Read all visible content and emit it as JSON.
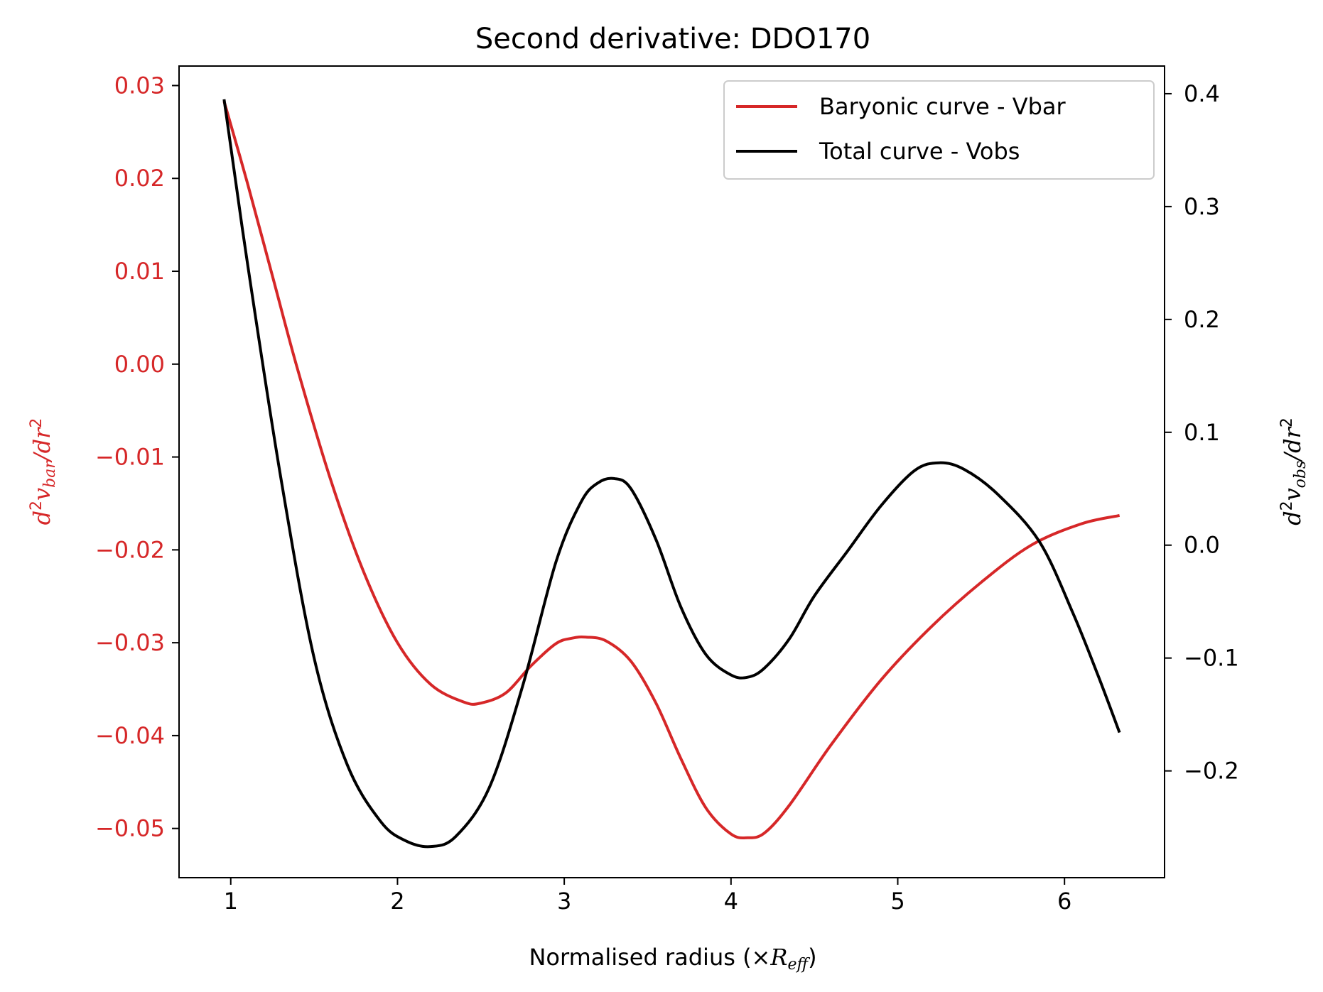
{
  "chart_data": {
    "type": "line",
    "title": "Second derivative: DDO170",
    "xlabel": {
      "main": "Normalised radius (×",
      "var": "R",
      "sub": "eff",
      "close": ")"
    },
    "ylabel_left": {
      "var1": "d",
      "sup1": "2",
      "var2": "v",
      "sub": "bar",
      "slash": "/",
      "var3": "dr",
      "sup2": "2"
    },
    "ylabel_right": {
      "var1": "d",
      "sup1": "2",
      "var2": "v",
      "sub": "obs",
      "slash": "/",
      "var3": "dr",
      "sup2": "2"
    },
    "xlim": [
      0.69,
      6.6
    ],
    "ylim_left": [
      -0.0553,
      0.0321
    ],
    "ylim_right": [
      -0.2946,
      0.4245
    ],
    "x_ticks": [
      1,
      2,
      3,
      4,
      5,
      6
    ],
    "x_tick_labels": [
      "1",
      "2",
      "3",
      "4",
      "5",
      "6"
    ],
    "y_left_ticks": [
      0.03,
      0.02,
      0.01,
      0.0,
      -0.01,
      -0.02,
      -0.03,
      -0.04,
      -0.05
    ],
    "y_left_tick_labels": [
      "0.03",
      "0.02",
      "0.01",
      "0.00",
      "−0.01",
      "−0.02",
      "−0.03",
      "−0.04",
      "−0.05"
    ],
    "y_right_ticks": [
      0.4,
      0.3,
      0.2,
      0.1,
      0.0,
      -0.1,
      -0.2
    ],
    "y_right_tick_labels": [
      "0.4",
      "0.3",
      "0.2",
      "0.1",
      "0.0",
      "−0.1",
      "−0.2"
    ],
    "grid": false,
    "legend_position": "top-right",
    "colors": {
      "bar": "#d62728",
      "obs": "#000000",
      "left_axis_text": "#d62728",
      "right_axis_text": "#000000"
    },
    "series": [
      {
        "name": "Baryonic curve - Vbar",
        "axis": "left",
        "color": "#d62728",
        "points": [
          [
            0.96,
            0.0283
          ],
          [
            1.1,
            0.0195
          ],
          [
            1.25,
            0.0095
          ],
          [
            1.4,
            -0.0005
          ],
          [
            1.6,
            -0.0125
          ],
          [
            1.8,
            -0.0225
          ],
          [
            2.0,
            -0.03
          ],
          [
            2.2,
            -0.0345
          ],
          [
            2.4,
            -0.0364
          ],
          [
            2.5,
            -0.0365
          ],
          [
            2.65,
            -0.0354
          ],
          [
            2.8,
            -0.0325
          ],
          [
            2.95,
            -0.0301
          ],
          [
            3.05,
            -0.0295
          ],
          [
            3.13,
            -0.0294
          ],
          [
            3.25,
            -0.0298
          ],
          [
            3.4,
            -0.032
          ],
          [
            3.55,
            -0.0365
          ],
          [
            3.7,
            -0.0425
          ],
          [
            3.85,
            -0.0478
          ],
          [
            4.0,
            -0.0506
          ],
          [
            4.1,
            -0.051
          ],
          [
            4.2,
            -0.0505
          ],
          [
            4.35,
            -0.0475
          ],
          [
            4.6,
            -0.041
          ],
          [
            4.9,
            -0.034
          ],
          [
            5.2,
            -0.0283
          ],
          [
            5.5,
            -0.0235
          ],
          [
            5.8,
            -0.0195
          ],
          [
            6.1,
            -0.0172
          ],
          [
            6.33,
            -0.0163
          ]
        ]
      },
      {
        "name": "Total curve - Vobs",
        "axis": "right",
        "color": "#000000",
        "points": [
          [
            0.96,
            0.395
          ],
          [
            1.1,
            0.25
          ],
          [
            1.3,
            0.06
          ],
          [
            1.5,
            -0.1
          ],
          [
            1.7,
            -0.195
          ],
          [
            1.9,
            -0.245
          ],
          [
            2.05,
            -0.262
          ],
          [
            2.2,
            -0.267
          ],
          [
            2.35,
            -0.258
          ],
          [
            2.55,
            -0.215
          ],
          [
            2.75,
            -0.125
          ],
          [
            2.95,
            -0.015
          ],
          [
            3.1,
            0.038
          ],
          [
            3.2,
            0.055
          ],
          [
            3.3,
            0.059
          ],
          [
            3.4,
            0.05
          ],
          [
            3.55,
            0.005
          ],
          [
            3.7,
            -0.055
          ],
          [
            3.85,
            -0.097
          ],
          [
            4.0,
            -0.115
          ],
          [
            4.1,
            -0.117
          ],
          [
            4.2,
            -0.109
          ],
          [
            4.35,
            -0.083
          ],
          [
            4.5,
            -0.045
          ],
          [
            4.7,
            -0.005
          ],
          [
            4.9,
            0.035
          ],
          [
            5.1,
            0.066
          ],
          [
            5.25,
            0.073
          ],
          [
            5.4,
            0.067
          ],
          [
            5.6,
            0.045
          ],
          [
            5.85,
            0.003
          ],
          [
            6.05,
            -0.06
          ],
          [
            6.2,
            -0.115
          ],
          [
            6.33,
            -0.166
          ]
        ]
      }
    ]
  }
}
